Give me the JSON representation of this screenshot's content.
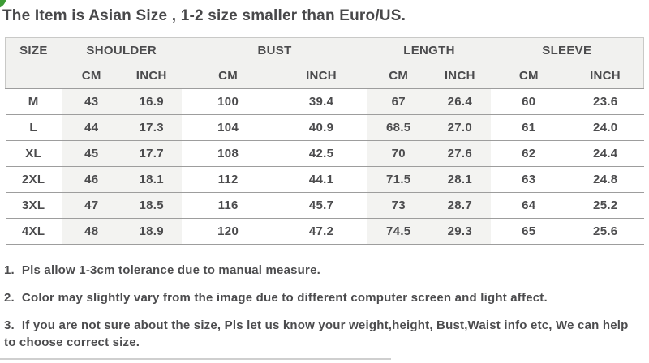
{
  "page": {
    "title": "The Item is Asian Size , 1-2 size smaller than Euro/US."
  },
  "decor": {
    "corner_mark_color": "#3d9b35",
    "header_bg": "#f1f1ef",
    "shaded_column_bg": "#f3f3f1"
  },
  "size_chart": {
    "column_groups": [
      {
        "label": "SIZE"
      },
      {
        "label": "SHOULDER"
      },
      {
        "label": "BUST"
      },
      {
        "label": "LENGTH"
      },
      {
        "label": "SLEEVE"
      }
    ],
    "unit_headers": [
      "CM",
      "INCH",
      "CM",
      "INCH",
      "CM",
      "INCH",
      "CM",
      "INCH"
    ],
    "rows": [
      {
        "size": "M",
        "values": [
          "43",
          "16.9",
          "100",
          "39.4",
          "67",
          "26.4",
          "60",
          "23.6"
        ]
      },
      {
        "size": "L",
        "values": [
          "44",
          "17.3",
          "104",
          "40.9",
          "68.5",
          "27.0",
          "61",
          "24.0"
        ]
      },
      {
        "size": "XL",
        "values": [
          "45",
          "17.7",
          "108",
          "42.5",
          "70",
          "27.6",
          "62",
          "24.4"
        ]
      },
      {
        "size": "2XL",
        "values": [
          "46",
          "18.1",
          "112",
          "44.1",
          "71.5",
          "28.1",
          "63",
          "24.8"
        ]
      },
      {
        "size": "3XL",
        "values": [
          "47",
          "18.5",
          "116",
          "45.7",
          "73",
          "28.7",
          "64",
          "25.2"
        ]
      },
      {
        "size": "4XL",
        "values": [
          "48",
          "18.9",
          "120",
          "47.2",
          "74.5",
          "29.3",
          "65",
          "25.6"
        ]
      }
    ]
  },
  "notes": [
    {
      "number": "1.",
      "text": "Pls allow 1-3cm tolerance due to manual measure."
    },
    {
      "number": "2.",
      "text": "Color may slightly vary from the image due to different computer screen and light affect."
    },
    {
      "number": "3.",
      "text": "If you are not sure about the size, Pls let us know your weight,height, Bust,Waist info etc, We can help to choose correct size."
    }
  ]
}
